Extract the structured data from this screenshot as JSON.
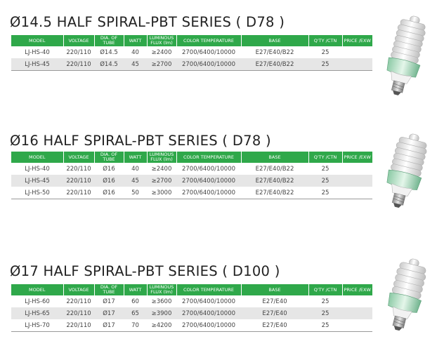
{
  "headers": [
    "MODEL",
    "VOLTAGE",
    "DIA. OF TUBE",
    "WATT",
    "LUMINOUS FLUX (lm)",
    "COLOR TEMPERATURE",
    "BASE",
    "Q'TY /CTN",
    "PRICE /EXW"
  ],
  "sections": [
    {
      "title": "Ø14.5  HALF SPIRAL-PBT SERIES ( D78 )",
      "rows": [
        [
          "LJ-HS-40",
          "220/110",
          "Ø14.5",
          "40",
          "≥2400",
          "2700/6400/10000",
          "E27/E40/B22",
          "25",
          ""
        ],
        [
          "LJ-HS-45",
          "220/110",
          "Ø14.5",
          "45",
          "≥2700",
          "2700/6400/10000",
          "E27/E40/B22",
          "25",
          ""
        ]
      ]
    },
    {
      "title": "Ø16  HALF SPIRAL-PBT SERIES ( D78 )",
      "rows": [
        [
          "LJ-HS-40",
          "220/110",
          "Ø16",
          "40",
          "≥2400",
          "2700/6400/10000",
          "E27/E40/B22",
          "25",
          ""
        ],
        [
          "LJ-HS-45",
          "220/110",
          "Ø16",
          "45",
          "≥2700",
          "2700/6400/10000",
          "E27/E40/B22",
          "25",
          ""
        ],
        [
          "LJ-HS-50",
          "220/110",
          "Ø16",
          "50",
          "≥3000",
          "2700/6400/10000",
          "E27/E40/B22",
          "25",
          ""
        ]
      ]
    },
    {
      "title": "Ø17  HALF SPIRAL-PBT SERIES ( D100 )",
      "rows": [
        [
          "LJ-HS-60",
          "220/110",
          "Ø17",
          "60",
          "≥3600",
          "2700/6400/10000",
          "E27/E40",
          "25",
          ""
        ],
        [
          "LJ-HS-65",
          "220/110",
          "Ø17",
          "65",
          "≥3900",
          "2700/6400/10000",
          "E27/E40",
          "25",
          ""
        ],
        [
          "LJ-HS-70",
          "220/110",
          "Ø17",
          "70",
          "≥4200",
          "2700/6400/10000",
          "E27/E40",
          "25",
          ""
        ]
      ]
    }
  ]
}
